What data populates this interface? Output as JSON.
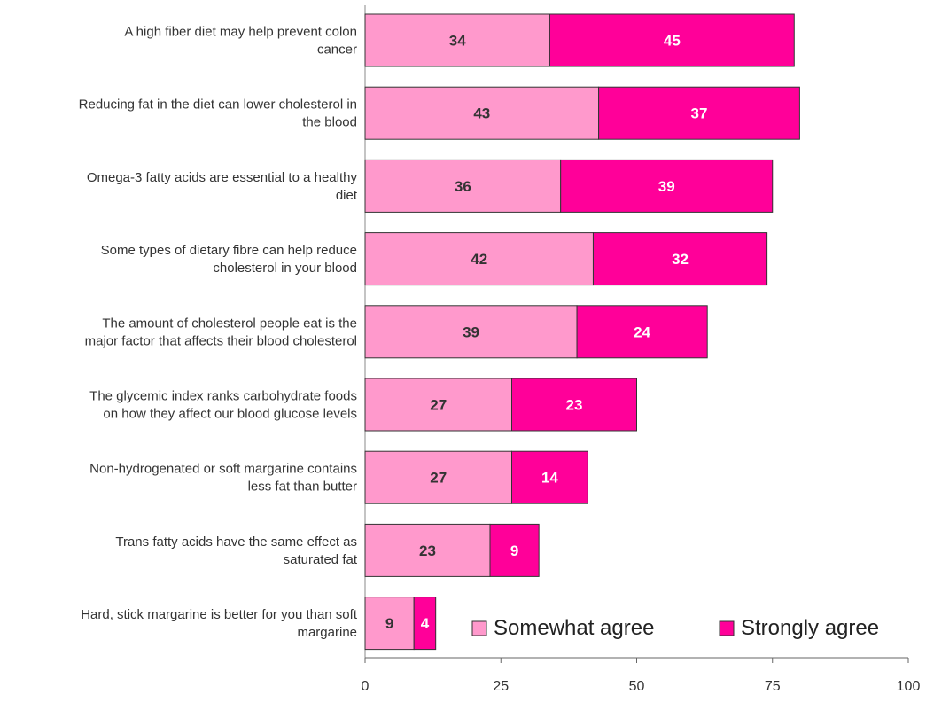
{
  "chart_data": {
    "type": "bar",
    "orientation": "horizontal",
    "stacked": true,
    "title": "",
    "xlabel": "",
    "ylabel": "",
    "xlim": [
      0,
      100
    ],
    "x_ticks": [
      "0",
      "25",
      "50",
      "75",
      "100"
    ],
    "grid": false,
    "legend_position": "bottom-right",
    "categories": [
      [
        "A high fiber diet may help prevent colon",
        "cancer"
      ],
      [
        "Reducing fat in the diet can lower cholesterol in",
        "the blood"
      ],
      [
        "Omega-3 fatty acids are essential to a healthy",
        "diet"
      ],
      [
        "Some types of dietary fibre can help reduce",
        "cholesterol in your blood"
      ],
      [
        "The amount of cholesterol people eat is the",
        "major factor that affects their blood cholesterol"
      ],
      [
        "The glycemic index ranks carbohydrate foods",
        "on how they affect our blood glucose levels"
      ],
      [
        "Non-hydrogenated or soft margarine contains",
        "less fat than butter"
      ],
      [
        "Trans fatty acids have the same effect as",
        "saturated fat"
      ],
      [
        "Hard, stick margarine is better for you than soft",
        "margarine"
      ]
    ],
    "series": [
      {
        "name": "Somewhat agree",
        "color": "#ff99cc",
        "label_color": "#333333",
        "values": [
          34,
          43,
          36,
          42,
          39,
          27,
          27,
          23,
          9
        ]
      },
      {
        "name": "Strongly agree",
        "color": "#ff0099",
        "label_color": "#ffffff",
        "values": [
          45,
          37,
          39,
          32,
          24,
          23,
          14,
          9,
          4
        ]
      }
    ]
  }
}
